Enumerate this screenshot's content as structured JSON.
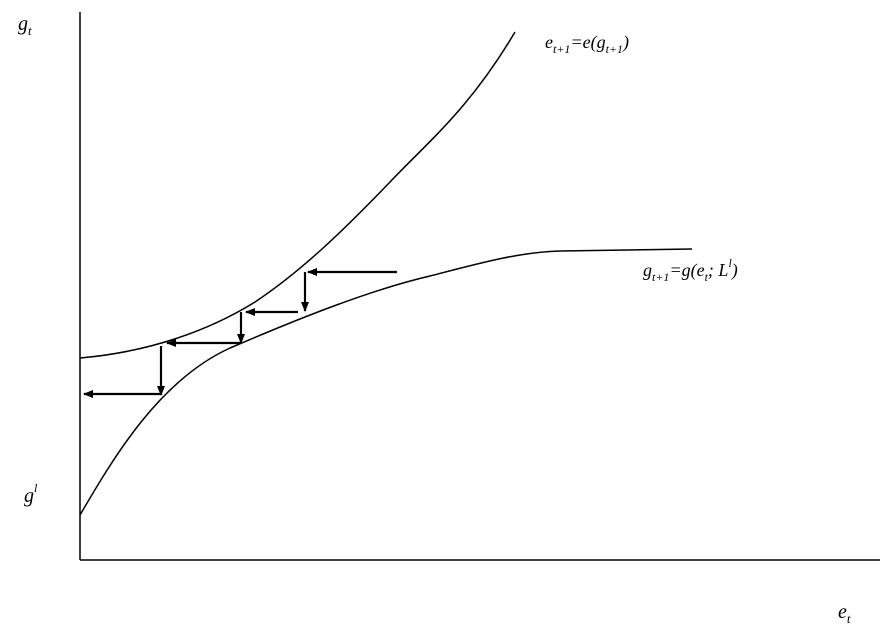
{
  "axes": {
    "y_label": {
      "base": "g",
      "sub": "t"
    },
    "x_label": {
      "base": "e",
      "sub": "t"
    },
    "y_intercept_label": {
      "base": "g",
      "sup": "l"
    }
  },
  "curves": {
    "upper": {
      "label": "eₜ₊₁=e(gₜ₊₁)",
      "label_parts": [
        "e",
        "t+1",
        "=e(g",
        "t+1",
        ")"
      ]
    },
    "lower": {
      "label": "gₜ₊₁=g(eₜ; Lˡ)",
      "label_parts": [
        "g",
        "t+1",
        "=g(e",
        "t",
        "; L",
        "l",
        ")"
      ]
    }
  },
  "colors": {
    "ink": "#000000",
    "background": "#ffffff"
  }
}
